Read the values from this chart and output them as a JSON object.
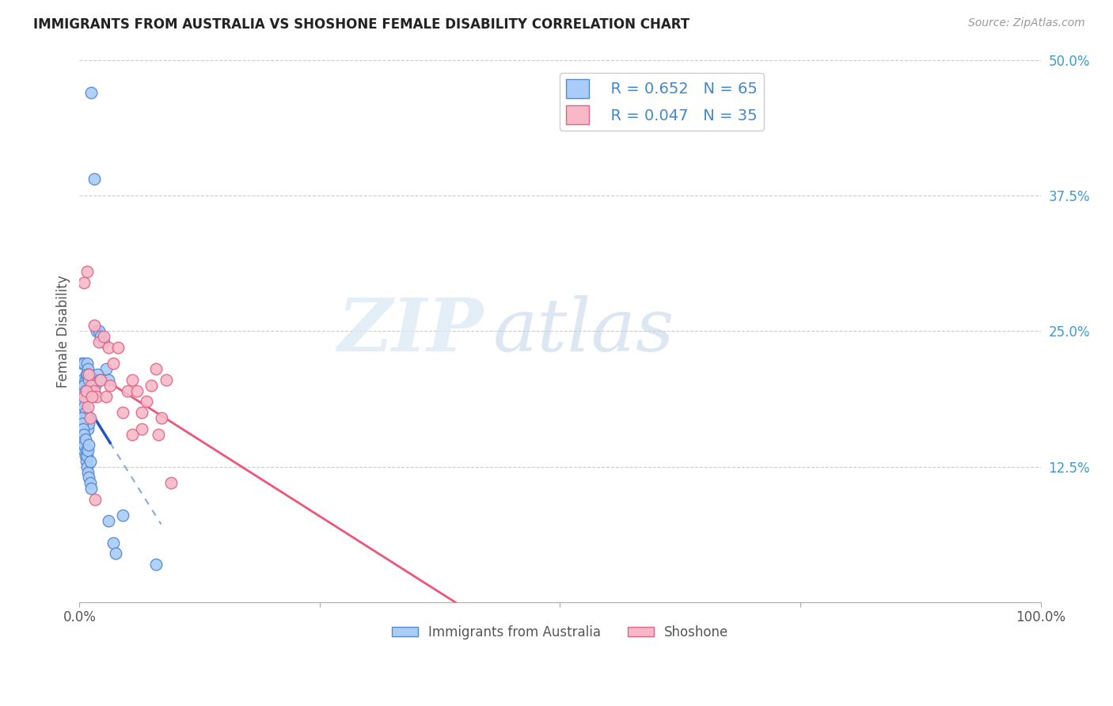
{
  "title": "IMMIGRANTS FROM AUSTRALIA VS SHOSHONE FEMALE DISABILITY CORRELATION CHART",
  "source": "Source: ZipAtlas.com",
  "ylabel": "Female Disability",
  "watermark_zip": "ZIP",
  "watermark_atlas": "atlas",
  "series1_label": "Immigrants from Australia",
  "series1_color": "#aaccf8",
  "series1_edge_color": "#5588cc",
  "series1_R": 0.652,
  "series1_N": 65,
  "series2_label": "Shoshone",
  "series2_color": "#f8b8c8",
  "series2_edge_color": "#dd6688",
  "series2_R": 0.047,
  "series2_N": 35,
  "xlim": [
    0,
    100
  ],
  "ylim": [
    0,
    50
  ],
  "right_ytick_labels": [
    "12.5%",
    "25.0%",
    "37.5%",
    "50.0%"
  ],
  "right_ytick_values": [
    12.5,
    25.0,
    37.5,
    50.0
  ],
  "grid_color": "#cccccc",
  "background_color": "#ffffff",
  "legend_color": "#4488cc",
  "series1_x": [
    1.2,
    1.5,
    1.8,
    2.0,
    2.2,
    2.5,
    2.8,
    3.0,
    0.2,
    0.3,
    0.4,
    0.5,
    0.6,
    0.7,
    0.8,
    0.9,
    1.0,
    1.1,
    0.2,
    0.3,
    0.4,
    0.5,
    0.6,
    0.7,
    0.8,
    0.9,
    1.0,
    0.2,
    0.3,
    0.4,
    0.5,
    0.6,
    0.7,
    0.8,
    0.9,
    1.0,
    1.1,
    1.2,
    0.2,
    0.2,
    0.3,
    0.3,
    0.4,
    0.4,
    0.5,
    0.5,
    0.6,
    0.7,
    0.8,
    0.9,
    1.0,
    1.1,
    1.3,
    1.6,
    1.9,
    2.1,
    0.5,
    0.6,
    0.8,
    1.0,
    3.0,
    3.5,
    3.8,
    4.5,
    8.0
  ],
  "series1_y": [
    47.0,
    39.0,
    25.0,
    25.0,
    24.5,
    24.0,
    21.5,
    20.5,
    22.0,
    20.5,
    20.0,
    22.0,
    20.5,
    21.0,
    22.0,
    21.5,
    21.0,
    20.0,
    19.0,
    19.5,
    18.5,
    18.0,
    17.5,
    17.0,
    16.5,
    16.0,
    16.5,
    15.5,
    15.0,
    14.5,
    14.0,
    13.5,
    13.0,
    12.5,
    12.0,
    11.5,
    11.0,
    10.5,
    17.0,
    16.0,
    16.5,
    15.5,
    16.0,
    15.0,
    15.5,
    14.5,
    15.0,
    14.0,
    13.5,
    14.0,
    14.5,
    13.0,
    20.5,
    20.0,
    21.0,
    20.5,
    20.0,
    19.5,
    21.0,
    20.5,
    7.5,
    5.5,
    4.5,
    8.0,
    3.5
  ],
  "series2_x": [
    0.5,
    0.8,
    1.5,
    2.0,
    2.5,
    3.0,
    3.5,
    4.0,
    4.5,
    5.0,
    5.5,
    6.0,
    6.5,
    7.0,
    7.5,
    8.0,
    8.5,
    9.0,
    1.0,
    1.2,
    1.5,
    1.8,
    2.2,
    2.8,
    3.2,
    0.5,
    0.7,
    0.9,
    1.1,
    1.3,
    1.6,
    5.5,
    6.5,
    8.2,
    9.5
  ],
  "series2_y": [
    29.5,
    30.5,
    25.5,
    24.0,
    24.5,
    23.5,
    22.0,
    23.5,
    17.5,
    19.5,
    20.5,
    19.5,
    16.0,
    18.5,
    20.0,
    21.5,
    17.0,
    20.5,
    21.0,
    20.0,
    19.5,
    19.0,
    20.5,
    19.0,
    20.0,
    19.0,
    19.5,
    18.0,
    17.0,
    19.0,
    9.5,
    15.5,
    17.5,
    15.5,
    11.0
  ]
}
